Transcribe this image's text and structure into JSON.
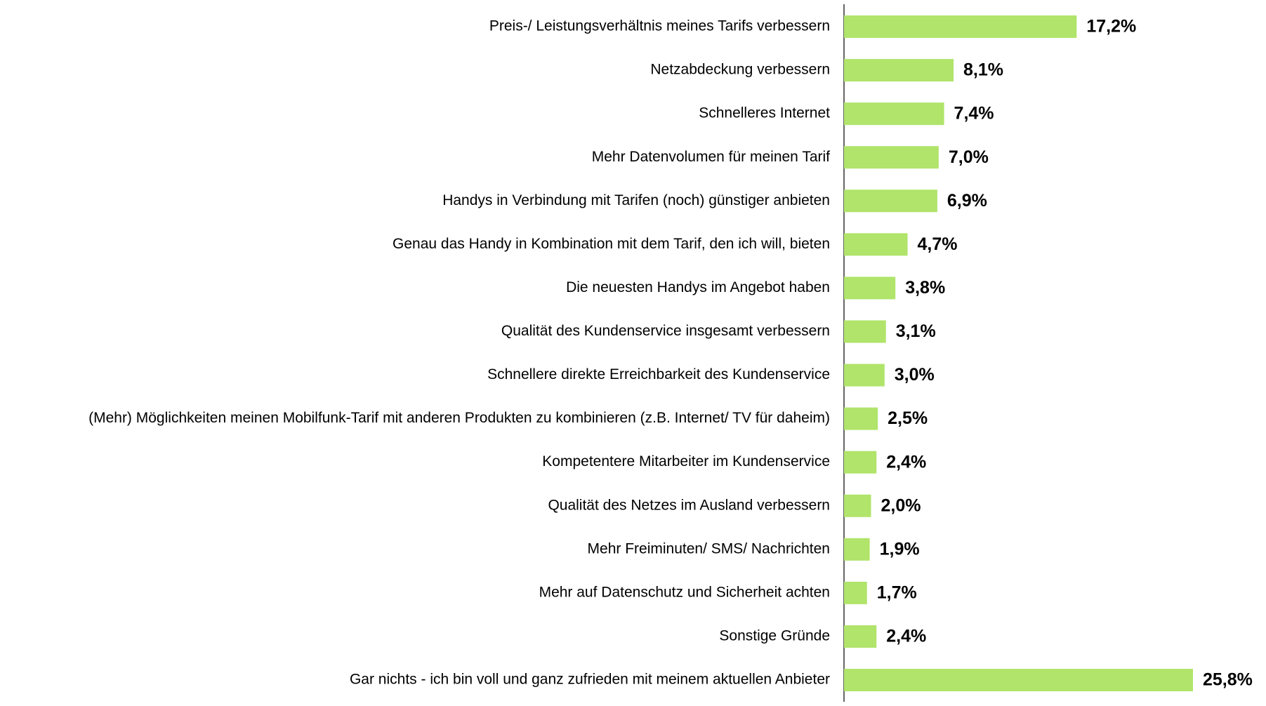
{
  "chart_data": {
    "type": "barh",
    "categories": [
      "Preis-/ Leistungsverhältnis meines Tarifs verbessern",
      "Netzabdeckung verbessern",
      "Schnelleres Internet",
      "Mehr Datenvolumen für meinen Tarif",
      "Handys in Verbindung mit Tarifen (noch) günstiger anbieten",
      "Genau das Handy in Kombination mit dem Tarif, den ich will, bieten",
      "Die neuesten Handys im Angebot haben",
      "Qualität des Kundenservice insgesamt verbessern",
      "Schnellere direkte Erreichbarkeit des Kundenservice",
      "(Mehr) Möglichkeiten meinen Mobilfunk-Tarif mit anderen Produkten zu kombinieren (z.B. Internet/ TV für daheim)",
      "Kompetentere Mitarbeiter im Kundenservice",
      "Qualität des Netzes im Ausland verbessern",
      "Mehr Freiminuten/ SMS/ Nachrichten",
      "Mehr auf Datenschutz und Sicherheit achten",
      "Sonstige Gründe",
      "Gar nichts - ich bin voll und ganz zufrieden mit meinem aktuellen Anbieter"
    ],
    "values": [
      17.2,
      8.1,
      7.4,
      7.0,
      6.9,
      4.7,
      3.8,
      3.1,
      3.0,
      2.5,
      2.4,
      2.0,
      1.9,
      1.7,
      2.4,
      25.8
    ],
    "value_labels": [
      "17,2%",
      "8,1%",
      "7,4%",
      "7,0%",
      "6,9%",
      "4,7%",
      "3,8%",
      "3,1%",
      "3,0%",
      "2,5%",
      "2,4%",
      "2,0%",
      "1,9%",
      "1,7%",
      "2,4%",
      "25,8%"
    ],
    "color": "#b0e46a"
  }
}
